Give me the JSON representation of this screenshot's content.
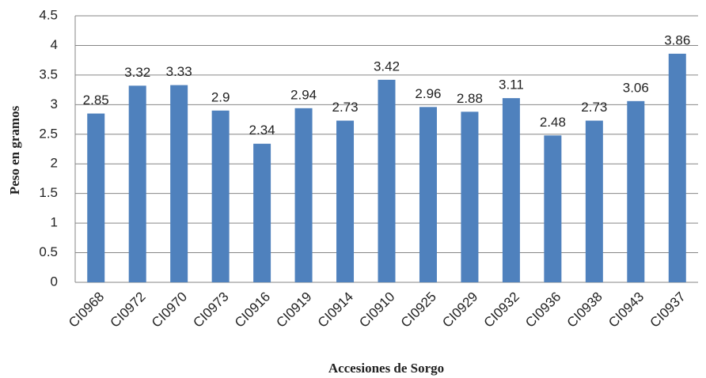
{
  "chart_data": {
    "type": "bar",
    "x_label": "Accesiones de Sorgo",
    "y_label": "Peso en gramos",
    "categories": [
      "CI0968",
      "CI0972",
      "CI0970",
      "CI0973",
      "CI0916",
      "CI0919",
      "CI0914",
      "CI0910",
      "CI0925",
      "CI0929",
      "CI0932",
      "CI0936",
      "CI0938",
      "CI0943",
      "CI0937"
    ],
    "values": [
      2.85,
      3.32,
      3.33,
      2.9,
      2.34,
      2.94,
      2.73,
      3.42,
      2.96,
      2.88,
      3.11,
      2.48,
      2.73,
      3.06,
      3.86
    ],
    "color": "#4f81bd",
    "ylim": [
      0,
      4.5
    ],
    "yticks": [
      0,
      0.5,
      1,
      1.5,
      2,
      2.5,
      3,
      3.5,
      4,
      4.5
    ],
    "grid": true
  }
}
